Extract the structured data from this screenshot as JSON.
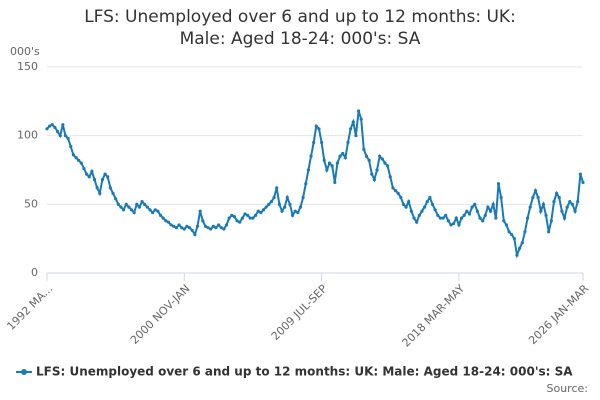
{
  "chart_data": {
    "type": "line",
    "title": "LFS: Unemployed over 6 and up to 12 months: UK: Male: Aged 18-24: 000's: SA",
    "y_label": "000's",
    "source": "Source:",
    "categories": [
      "1992 MA...",
      null,
      null,
      null,
      null,
      null,
      null,
      null,
      null,
      null,
      null,
      null,
      null,
      null,
      null,
      null,
      null,
      null,
      null,
      null,
      null,
      null,
      null,
      null,
      null,
      null,
      null,
      null,
      null,
      null,
      null,
      null,
      null,
      null,
      null,
      null,
      null,
      null,
      null,
      null,
      null,
      null,
      null,
      null,
      null,
      null,
      null,
      null,
      null,
      null,
      null,
      null,
      "2000 NOV-JAN",
      null,
      null,
      null,
      null,
      null,
      null,
      null,
      null,
      null,
      null,
      null,
      null,
      null,
      null,
      null,
      null,
      null,
      null,
      null,
      null,
      null,
      null,
      null,
      null,
      null,
      null,
      null,
      null,
      null,
      null,
      null,
      null,
      null,
      null,
      null,
      null,
      null,
      null,
      null,
      null,
      null,
      null,
      null,
      null,
      null,
      null,
      null,
      null,
      null,
      null,
      null,
      "2009 JUL-SEP",
      null,
      null,
      null,
      null,
      null,
      null,
      null,
      null,
      null,
      null,
      null,
      null,
      null,
      null,
      null,
      null,
      null,
      null,
      null,
      null,
      null,
      null,
      null,
      null,
      null,
      null,
      null,
      null,
      null,
      null,
      null,
      null,
      null,
      null,
      null,
      null,
      null,
      null,
      null,
      null,
      null,
      null,
      null,
      null,
      null,
      null,
      null,
      null,
      null,
      null,
      null,
      "2018 MAR-MAY",
      null,
      null,
      null,
      null,
      null,
      null,
      null,
      null,
      null,
      null,
      null,
      null,
      null,
      null,
      null,
      null,
      null,
      null,
      null,
      null,
      null,
      null,
      null,
      null,
      null,
      null,
      null,
      null,
      null,
      null,
      null,
      null,
      null,
      null,
      null,
      null,
      null,
      null,
      null,
      null,
      null,
      null,
      null,
      null,
      null,
      null,
      "2026 JAN-MAR"
    ],
    "series": [
      {
        "name": "LFS: Unemployed over 6 and up to 12 months: UK: Male: Aged 18-24: 000's: SA",
        "color": "#1a7ab7",
        "values": [
          105,
          107,
          108,
          106,
          103,
          100,
          108,
          100,
          98,
          92,
          86,
          84,
          82,
          80,
          76,
          72,
          70,
          74,
          68,
          62,
          58,
          68,
          72,
          70,
          62,
          58,
          54,
          50,
          48,
          46,
          50,
          48,
          46,
          44,
          50,
          48,
          52,
          50,
          48,
          46,
          44,
          46,
          45,
          42,
          40,
          38,
          37,
          35,
          34,
          33,
          35,
          33,
          32,
          34,
          33,
          31,
          28,
          34,
          45,
          38,
          34,
          33,
          32,
          34,
          33,
          35,
          33,
          32,
          35,
          40,
          42,
          41,
          38,
          37,
          40,
          43,
          42,
          40,
          40,
          42,
          45,
          44,
          46,
          48,
          50,
          52,
          55,
          62,
          50,
          45,
          48,
          55,
          50,
          42,
          45,
          44,
          48,
          55,
          65,
          75,
          85,
          95,
          107,
          105,
          95,
          82,
          75,
          80,
          78,
          66,
          80,
          85,
          87,
          84,
          95,
          105,
          110,
          100,
          118,
          112,
          90,
          85,
          82,
          72,
          68,
          75,
          85,
          83,
          80,
          78,
          70,
          62,
          60,
          58,
          55,
          50,
          48,
          52,
          45,
          40,
          37,
          42,
          45,
          48,
          52,
          55,
          50,
          46,
          42,
          40,
          40,
          42,
          38,
          35,
          36,
          40,
          35,
          40,
          42,
          45,
          43,
          48,
          50,
          45,
          40,
          38,
          42,
          48,
          45,
          50,
          40,
          65,
          55,
          38,
          35,
          30,
          28,
          25,
          13,
          18,
          22,
          30,
          40,
          48,
          55,
          60,
          55,
          45,
          50,
          42,
          30,
          38,
          52,
          58,
          55,
          45,
          40,
          48,
          52,
          50,
          45,
          52,
          72,
          66
        ]
      }
    ],
    "ylim": [
      0,
      150
    ],
    "yticks": [
      0,
      50,
      100,
      150
    ],
    "grid": true
  }
}
